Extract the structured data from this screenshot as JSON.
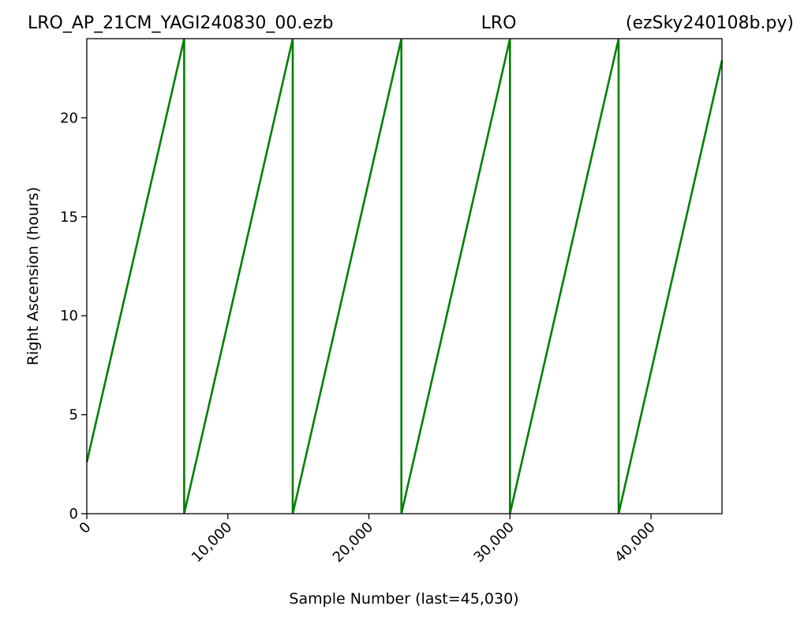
{
  "chart_data": {
    "type": "line",
    "title_left": "LRO_AP_21CM_YAGI240830_00.ezb",
    "title_center": "LRO",
    "title_right": "(ezSky240108b.py)",
    "xlabel": "Sample Number (last=45,030)",
    "ylabel": "Right Ascension (hours)",
    "xlim": [
      0,
      45030
    ],
    "ylim": [
      0,
      24
    ],
    "x_ticks": [
      {
        "value": 0,
        "label": "0"
      },
      {
        "value": 10000,
        "label": "10,000"
      },
      {
        "value": 20000,
        "label": "20,000"
      },
      {
        "value": 30000,
        "label": "30,000"
      },
      {
        "value": 40000,
        "label": "40,000"
      }
    ],
    "y_ticks": [
      {
        "value": 0,
        "label": "0"
      },
      {
        "value": 5,
        "label": "5"
      },
      {
        "value": 10,
        "label": "10"
      },
      {
        "value": 15,
        "label": "15"
      },
      {
        "value": 20,
        "label": "20"
      }
    ],
    "grid": false,
    "series": [
      {
        "color": "#008000",
        "points": [
          [
            0,
            2.6
          ],
          [
            6900,
            24.0
          ],
          [
            6900,
            0.0
          ],
          [
            14600,
            24.0
          ],
          [
            14600,
            0.0
          ],
          [
            22300,
            24.0
          ],
          [
            22300,
            0.0
          ],
          [
            30000,
            24.0
          ],
          [
            30000,
            0.0
          ],
          [
            37700,
            24.0
          ],
          [
            37700,
            0.0
          ],
          [
            45030,
            22.9
          ]
        ]
      }
    ]
  }
}
